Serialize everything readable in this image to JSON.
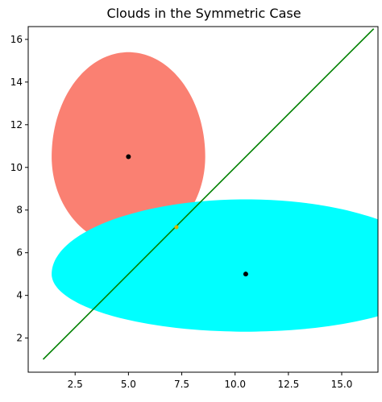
{
  "chart_data": {
    "type": "scatter",
    "title": "Clouds in the Symmetric Case",
    "xlabel": "",
    "ylabel": "",
    "xlim": [
      0.3,
      16.7
    ],
    "ylim": [
      0.4,
      16.6
    ],
    "x_ticks": [
      2.5,
      5.0,
      7.5,
      10.0,
      12.5,
      15.0
    ],
    "x_tick_labels": [
      "2.5",
      "5.0",
      "7.5",
      "10.0",
      "12.5",
      "15.0"
    ],
    "y_ticks": [
      2,
      4,
      6,
      8,
      10,
      12,
      14,
      16
    ],
    "y_tick_labels": [
      "2",
      "4",
      "6",
      "8",
      "10",
      "12",
      "14",
      "16"
    ],
    "grid": false,
    "legend": "none",
    "clouds": [
      {
        "center": [
          5.0,
          10.5
        ],
        "x_extent": [
          1.4,
          8.6
        ],
        "y_extent": [
          6.3,
          15.4
        ],
        "color": "#fa8072"
      },
      {
        "center": [
          10.5,
          5.0
        ],
        "x_extent": [
          1.4,
          19.6
        ],
        "y_extent": [
          2.3,
          8.5
        ],
        "color": "#00ffff"
      }
    ],
    "centers": [
      {
        "x": 5.0,
        "y": 10.5,
        "color": "#000000"
      },
      {
        "x": 10.5,
        "y": 5.0,
        "color": "#000000"
      }
    ],
    "boundary_line": {
      "x": [
        1.0,
        16.5
      ],
      "y": [
        1.0,
        16.5
      ],
      "color": "#008000"
    },
    "tangent_point": {
      "x": 7.25,
      "y": 7.2,
      "color": "#d4b300"
    }
  }
}
